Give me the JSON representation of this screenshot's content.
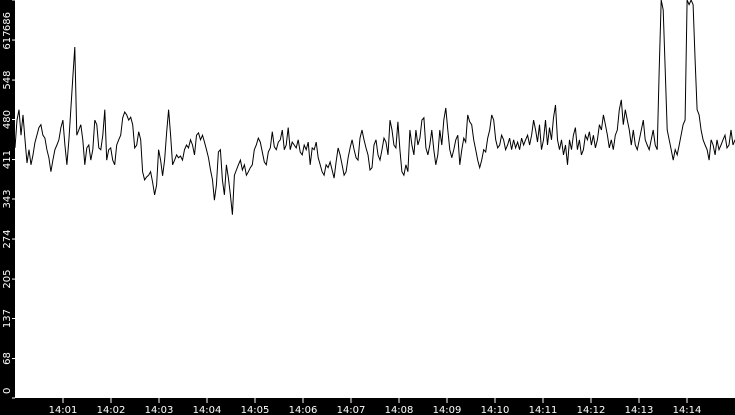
{
  "chart_data": {
    "type": "line",
    "title": "",
    "xlabel": "",
    "ylabel": "",
    "xlim": [
      "14:00:00",
      "14:15:00"
    ],
    "ylim": [
      0,
      686
    ],
    "grid": false,
    "background_color": "#000000",
    "plot_color": "#ffffff",
    "line_color": "#000000",
    "y_ticks": [
      "0",
      "68",
      "137",
      "205",
      "274",
      "343",
      "411",
      "480",
      "548",
      "617",
      "686"
    ],
    "x_ticks": [
      "14:01",
      "14:02",
      "14:03",
      "14:04",
      "14:05",
      "14:06",
      "14:07",
      "14:08",
      "14:09",
      "14:10",
      "14:11",
      "14:12",
      "14:13",
      "14:14"
    ],
    "series": [
      {
        "x_start": "14:00:00",
        "x_end": "14:15:00",
        "values": [
          431,
          479,
          497,
          453,
          488,
          445,
          405,
          428,
          402,
          419,
          440,
          453,
          466,
          471,
          453,
          448,
          428,
          414,
          390,
          410,
          428,
          436,
          445,
          466,
          479,
          436,
          402,
          445,
          497,
          552,
          605,
          453,
          462,
          471,
          445,
          402,
          431,
          436,
          410,
          428,
          479,
          471,
          431,
          428,
          453,
          497,
          410,
          428,
          431,
          410,
          402,
          436,
          445,
          453,
          483,
          493,
          488,
          479,
          484,
          471,
          431,
          436,
          459,
          445,
          390,
          376,
          381,
          384,
          390,
          372,
          350,
          367,
          428,
          410,
          383,
          410,
          457,
          497,
          453,
          402,
          410,
          419,
          414,
          417,
          410,
          428,
          436,
          431,
          445,
          436,
          419,
          453,
          457,
          445,
          453,
          441,
          428,
          414,
          393,
          376,
          341,
          367,
          424,
          428,
          376,
          350,
          402,
          379,
          350,
          316,
          384,
          393,
          402,
          410,
          393,
          402,
          384,
          390,
          397,
          402,
          428,
          436,
          448,
          441,
          424,
          407,
          402,
          424,
          431,
          459,
          433,
          428,
          441,
          445,
          462,
          428,
          436,
          466,
          428,
          441,
          436,
          431,
          445,
          424,
          419,
          436,
          428,
          441,
          402,
          431,
          428,
          441,
          414,
          402,
          390,
          384,
          402,
          397,
          407,
          393,
          379,
          407,
          431,
          419,
          402,
          384,
          390,
          414,
          431,
          445,
          428,
          414,
          410,
          448,
          462,
          445,
          431,
          419,
          393,
          397,
          436,
          445,
          419,
          410,
          428,
          448,
          441,
          419,
          479,
          462,
          436,
          431,
          476,
          428,
          390,
          384,
          402,
          390,
          462,
          436,
          419,
          462,
          436,
          448,
          479,
          483,
          431,
          419,
          436,
          462,
          428,
          402,
          419,
          462,
          436,
          479,
          500,
          462,
          428,
          414,
          428,
          445,
          453,
          402,
          428,
          448,
          441,
          488,
          476,
          471,
          445,
          428,
          410,
          397,
          410,
          428,
          424,
          448,
          462,
          488,
          479,
          445,
          431,
          436,
          453,
          445,
          428,
          436,
          448,
          428,
          445,
          431,
          441,
          428,
          448,
          436,
          445,
          453,
          436,
          453,
          479,
          462,
          441,
          471,
          428,
          445,
          479,
          436,
          466,
          445,
          483,
          505,
          445,
          428,
          445,
          419,
          436,
          402,
          445,
          428,
          453,
          466,
          428,
          445,
          419,
          428,
          453,
          445,
          459,
          436,
          453,
          431,
          445,
          471,
          462,
          488,
          471,
          453,
          431,
          445,
          428,
          453,
          462,
          497,
          514,
          471,
          497,
          479,
          462,
          436,
          462,
          436,
          428,
          445,
          462,
          479,
          445,
          436,
          428,
          445,
          462,
          436,
          428,
          566,
          686,
          669,
          566,
          462,
          445,
          428,
          410,
          428,
          419,
          436,
          453,
          471,
          479,
          686,
          678,
          686,
          678,
          583,
          497,
          488,
          462,
          445,
          436,
          428,
          410,
          445,
          436,
          419,
          445,
          428,
          436,
          445,
          453,
          431,
          436,
          462,
          436,
          445
        ]
      }
    ]
  }
}
